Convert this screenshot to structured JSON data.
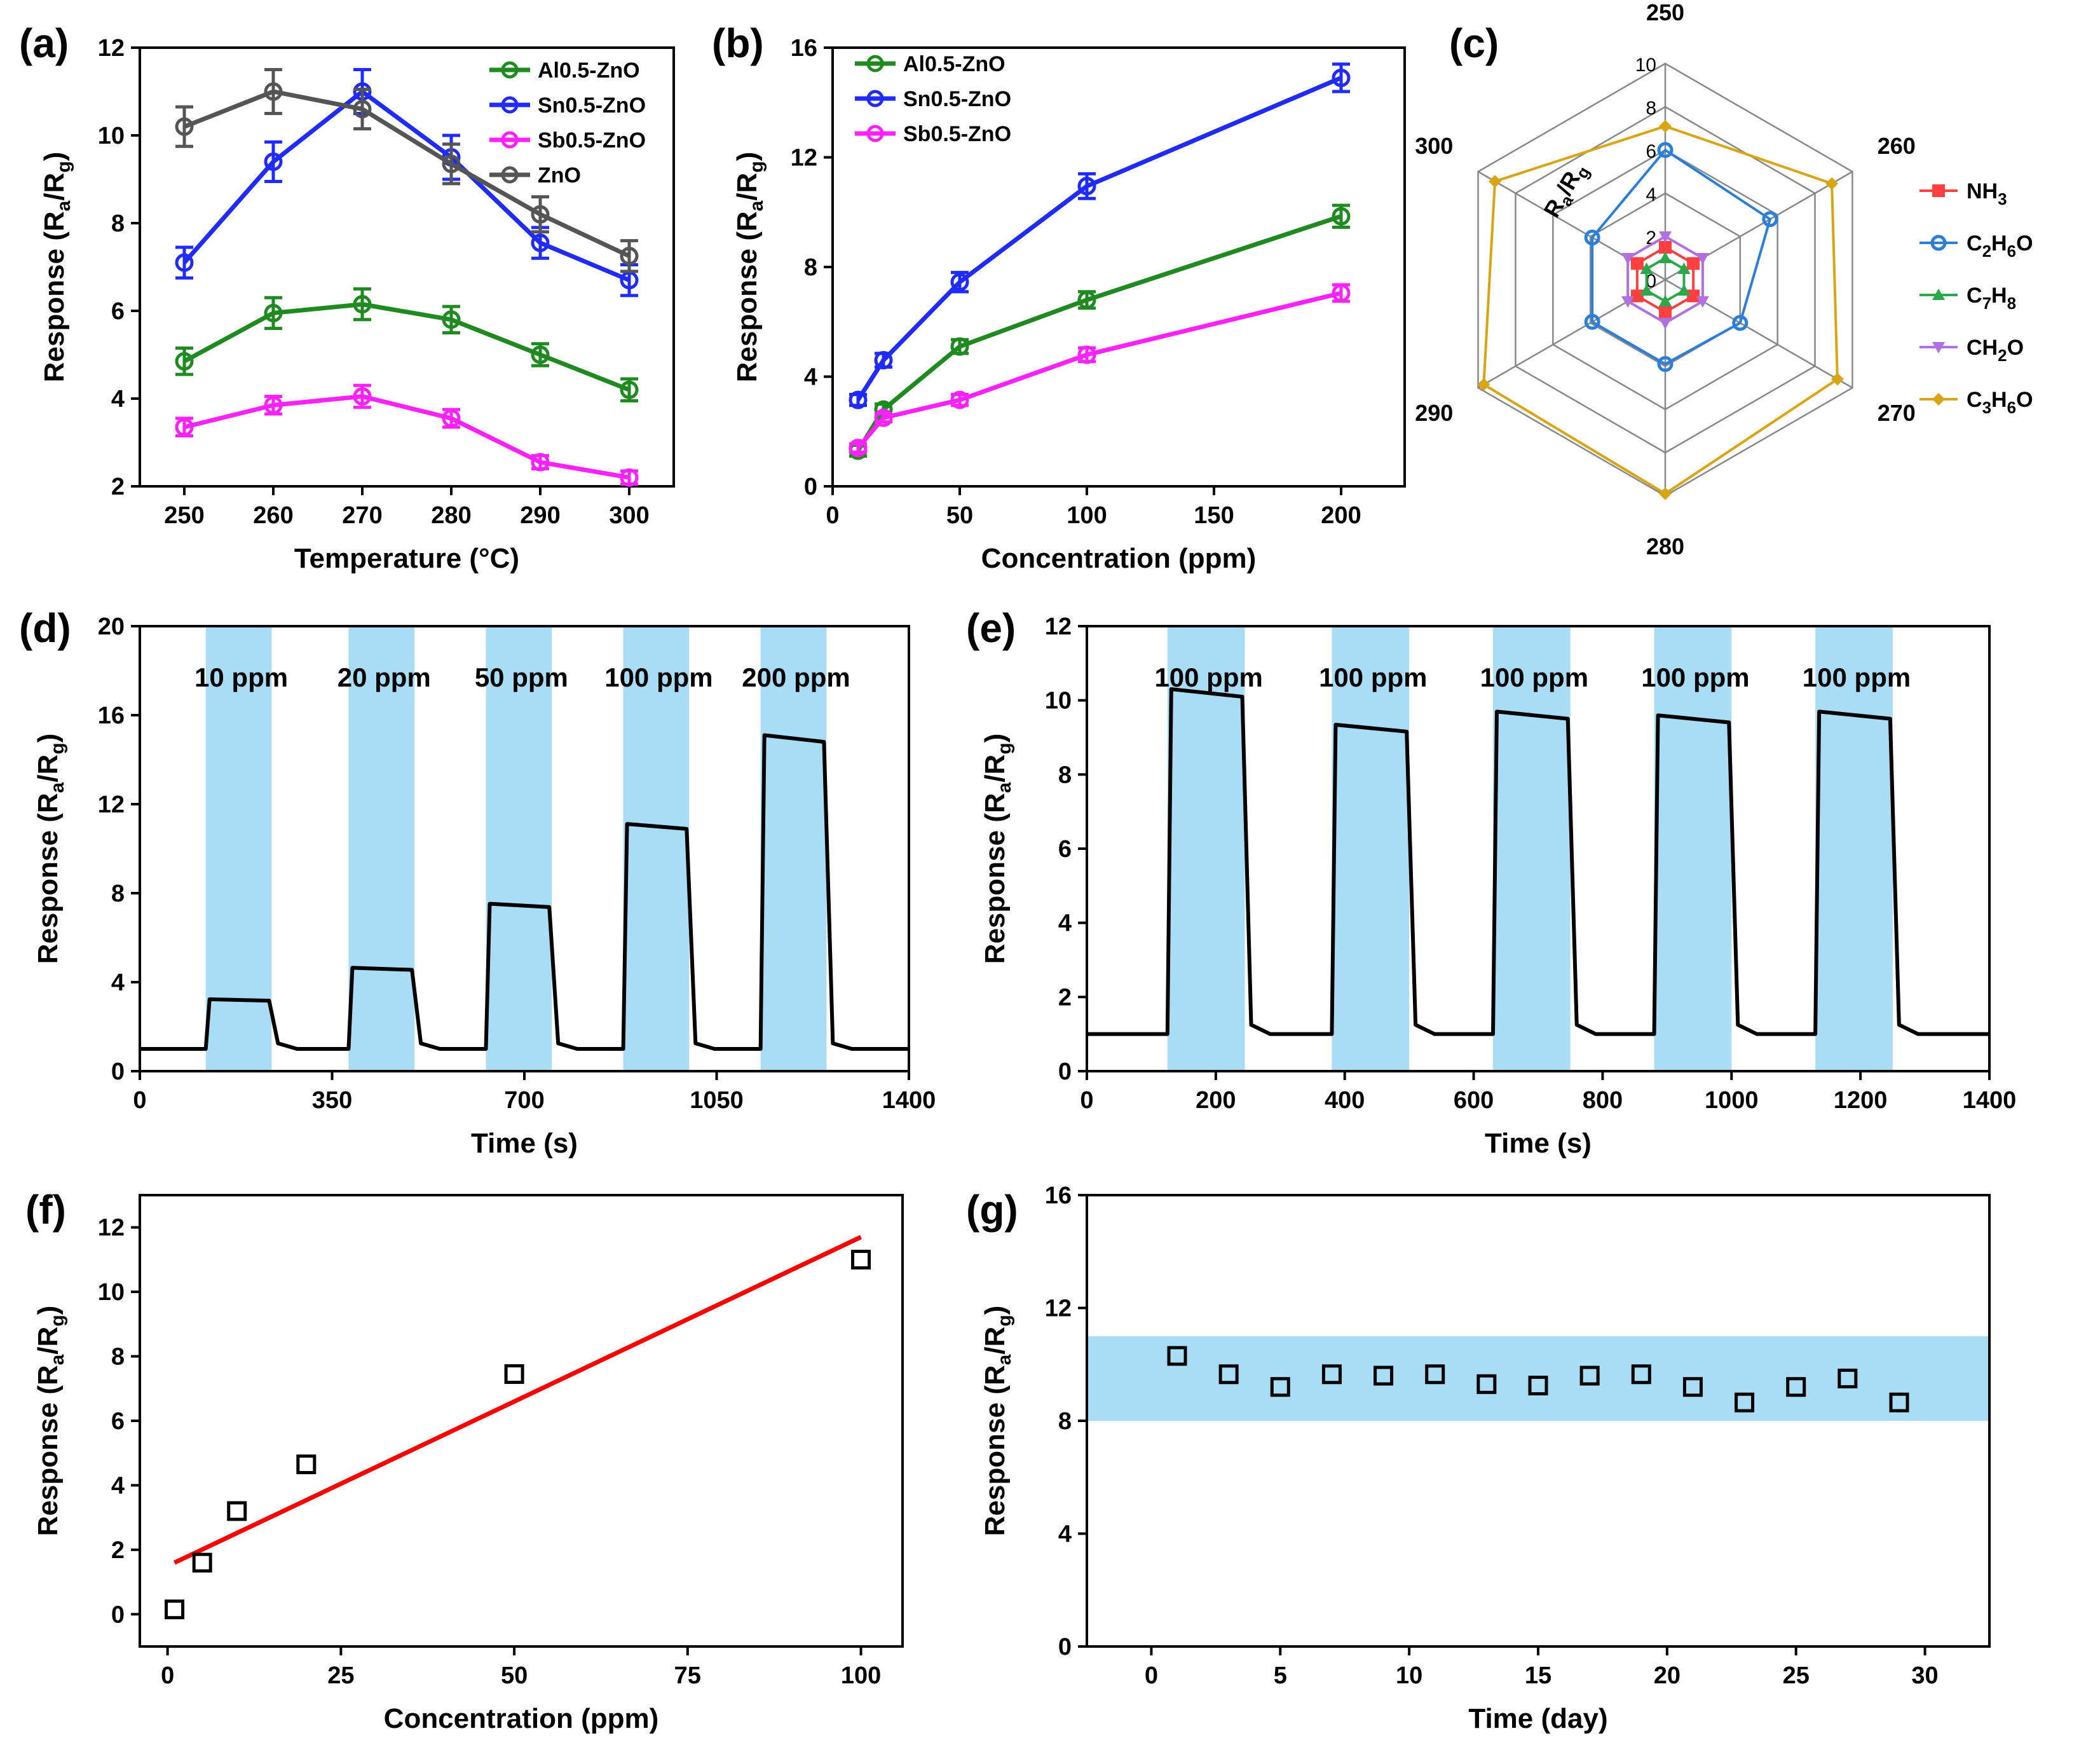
{
  "chart_data": [
    {
      "id": "a",
      "panel_label": "(a)",
      "type": "line",
      "xlabel": "Temperature (°C)",
      "ylabel": "Response (Ra/Rg)",
      "ylabel_parts": [
        "Response (R",
        "a",
        "/R",
        "g",
        ")"
      ],
      "x": [
        250,
        260,
        270,
        280,
        290,
        300
      ],
      "xlim": [
        245,
        305
      ],
      "xticks": [
        250,
        260,
        270,
        280,
        290,
        300
      ],
      "ylim": [
        2,
        12
      ],
      "yticks": [
        2,
        4,
        6,
        8,
        10,
        12
      ],
      "legend_position": "top-right",
      "series": [
        {
          "name": "Al0.5-ZnO",
          "color": "#1f8a1f",
          "values": [
            4.85,
            5.95,
            6.15,
            5.8,
            5.0,
            4.2
          ],
          "errors": [
            0.3,
            0.35,
            0.35,
            0.3,
            0.25,
            0.25
          ]
        },
        {
          "name": "Sn0.5-ZnO",
          "color": "#1f2bff",
          "values": [
            7.1,
            9.4,
            11.0,
            9.5,
            7.55,
            6.7
          ],
          "errors": [
            0.35,
            0.45,
            0.5,
            0.5,
            0.35,
            0.35
          ]
        },
        {
          "name": "Sb0.5-ZnO",
          "color": "#ff22ff",
          "values": [
            3.35,
            3.85,
            4.05,
            3.55,
            2.55,
            2.2
          ],
          "errors": [
            0.2,
            0.2,
            0.25,
            0.2,
            0.15,
            0.15
          ]
        },
        {
          "name": "ZnO",
          "color": "#555555",
          "values": [
            10.2,
            11.0,
            10.6,
            9.35,
            8.2,
            7.25
          ],
          "errors": [
            0.45,
            0.5,
            0.45,
            0.45,
            0.4,
            0.35
          ]
        }
      ]
    },
    {
      "id": "b",
      "panel_label": "(b)",
      "type": "line",
      "xlabel": "Concentration (ppm)",
      "ylabel": "Response (Ra/Rg)",
      "ylabel_parts": [
        "Response (R",
        "a",
        "/R",
        "g",
        ")"
      ],
      "x": [
        10,
        20,
        50,
        100,
        200
      ],
      "xlim": [
        0,
        225
      ],
      "xticks": [
        0,
        50,
        100,
        150,
        200
      ],
      "ylim": [
        0,
        16
      ],
      "yticks": [
        0,
        4,
        8,
        12,
        16
      ],
      "legend_position": "top-left",
      "series": [
        {
          "name": "Al0.5-ZnO",
          "color": "#1f8a1f",
          "values": [
            1.3,
            2.8,
            5.1,
            6.8,
            9.85
          ],
          "errors": [
            0.2,
            0.2,
            0.25,
            0.3,
            0.4
          ]
        },
        {
          "name": "Sn0.5-ZnO",
          "color": "#1f2bff",
          "values": [
            3.15,
            4.6,
            7.45,
            10.95,
            14.9
          ],
          "errors": [
            0.2,
            0.25,
            0.35,
            0.45,
            0.5
          ]
        },
        {
          "name": "Sb0.5-ZnO",
          "color": "#ff22ff",
          "values": [
            1.4,
            2.5,
            3.15,
            4.8,
            7.05
          ],
          "errors": [
            0.15,
            0.15,
            0.2,
            0.25,
            0.3
          ]
        }
      ]
    },
    {
      "id": "c",
      "panel_label": "(c)",
      "type": "radar",
      "ylabel": "Ra/Rg",
      "axes": [
        "250",
        "260",
        "270",
        "280",
        "290",
        "300"
      ],
      "rlim": [
        0,
        10
      ],
      "rticks": [
        0,
        2,
        4,
        6,
        8,
        10
      ],
      "legend_position": "right",
      "series": [
        {
          "name": "NH3",
          "label_main": "NH",
          "label_sub": "3",
          "label_rest": "",
          "color": "#ff4040",
          "marker": "square",
          "values": [
            1.5,
            1.5,
            1.5,
            1.5,
            1.5,
            1.5
          ]
        },
        {
          "name": "C2H6O",
          "label_main": "C",
          "label_sub": "2",
          "label_rest": "H",
          "label_sub2": "6",
          "label_end": "O",
          "color": "#2b7fd8",
          "marker": "circle",
          "values": [
            6.0,
            5.6,
            4.0,
            3.9,
            3.9,
            3.9
          ]
        },
        {
          "name": "C7H8",
          "label_main": "C",
          "label_sub": "7",
          "label_rest": "H",
          "label_sub2": "8",
          "label_end": "",
          "color": "#2aa84a",
          "marker": "triangle",
          "values": [
            1.0,
            1.0,
            1.0,
            1.0,
            1.0,
            1.0
          ]
        },
        {
          "name": "CH2O",
          "label_main": "CH",
          "label_sub": "2",
          "label_rest": "O",
          "color": "#b070e0",
          "marker": "triangle-down",
          "values": [
            2.0,
            2.0,
            2.0,
            2.0,
            2.0,
            2.0
          ]
        },
        {
          "name": "C3H6O",
          "label_main": "C",
          "label_sub": "3",
          "label_rest": "H",
          "label_sub2": "6",
          "label_end": "O",
          "color": "#d9a514",
          "marker": "diamond",
          "values": [
            7.1,
            8.9,
            9.2,
            9.9,
            9.7,
            9.1
          ]
        }
      ]
    },
    {
      "id": "d",
      "panel_label": "(d)",
      "type": "line",
      "xlabel": "Time (s)",
      "ylabel": "Response (Ra/Rg)",
      "ylabel_parts": [
        "Response (R",
        "a",
        "/R",
        "g",
        ")"
      ],
      "xlim": [
        0,
        1400
      ],
      "xticks": [
        0,
        350,
        700,
        1050,
        1400
      ],
      "ylim": [
        0,
        20
      ],
      "yticks": [
        0,
        4,
        8,
        12,
        16,
        20
      ],
      "baseline": 1.0,
      "pulses": [
        {
          "label": "10 ppm",
          "start": 120,
          "end": 240,
          "value": 3.2
        },
        {
          "label": "20 ppm",
          "start": 380,
          "end": 500,
          "value": 4.6
        },
        {
          "label": "50 ppm",
          "start": 630,
          "end": 750,
          "value": 7.45
        },
        {
          "label": "100 ppm",
          "start": 880,
          "end": 1000,
          "value": 11.0
        },
        {
          "label": "200 ppm",
          "start": 1130,
          "end": 1250,
          "value": 14.95
        }
      ]
    },
    {
      "id": "e",
      "panel_label": "(e)",
      "type": "line",
      "xlabel": "Time (s)",
      "ylabel": "Response (Ra/Rg)",
      "ylabel_parts": [
        "Response (R",
        "a",
        "/R",
        "g",
        ")"
      ],
      "xlim": [
        0,
        1400
      ],
      "xticks": [
        0,
        200,
        400,
        600,
        800,
        1000,
        1200,
        1400
      ],
      "ylim": [
        0,
        12
      ],
      "yticks": [
        0,
        2,
        4,
        6,
        8,
        10,
        12
      ],
      "baseline": 1.0,
      "pulses": [
        {
          "label": "100 ppm",
          "start": 125,
          "end": 245,
          "value": 10.2
        },
        {
          "label": "100 ppm",
          "start": 380,
          "end": 500,
          "value": 9.25
        },
        {
          "label": "100 ppm",
          "start": 630,
          "end": 750,
          "value": 9.6
        },
        {
          "label": "100 ppm",
          "start": 880,
          "end": 1000,
          "value": 9.5
        },
        {
          "label": "100 ppm",
          "start": 1130,
          "end": 1250,
          "value": 9.6
        }
      ]
    },
    {
      "id": "f",
      "panel_label": "(f)",
      "type": "scatter",
      "xlabel": "Concentration (ppm)",
      "ylabel": "Response (Ra/Rg)",
      "ylabel_parts": [
        "Response (R",
        "a",
        "/R",
        "g",
        ")"
      ],
      "xlim": [
        -4,
        106
      ],
      "xticks": [
        0,
        25,
        50,
        75,
        100
      ],
      "ylim": [
        -1,
        13
      ],
      "yticks": [
        0,
        2,
        4,
        6,
        8,
        10,
        12
      ],
      "x": [
        1,
        5,
        10,
        20,
        50,
        100
      ],
      "y": [
        0.15,
        1.6,
        3.2,
        4.65,
        7.45,
        11.0
      ],
      "fit": {
        "color": "#ff0000",
        "x": [
          1,
          100
        ],
        "y": [
          1.6,
          11.7
        ]
      }
    },
    {
      "id": "g",
      "panel_label": "(g)",
      "type": "scatter",
      "xlabel": "Time (day)",
      "ylabel": "Response (Ra/Rg)",
      "ylabel_parts": [
        "Response (R",
        "a",
        "/R",
        "g",
        ")"
      ],
      "xlim": [
        -2.5,
        32.5
      ],
      "xticks": [
        0,
        5,
        10,
        15,
        20,
        25,
        30
      ],
      "ylim": [
        0,
        16
      ],
      "yticks": [
        0,
        4,
        8,
        12,
        16
      ],
      "band": [
        8.0,
        11.0
      ],
      "x": [
        1,
        3,
        5,
        7,
        9,
        11,
        13,
        15,
        17,
        19,
        21,
        23,
        25,
        27,
        29
      ],
      "y": [
        10.3,
        9.65,
        9.2,
        9.65,
        9.6,
        9.65,
        9.3,
        9.25,
        9.6,
        9.65,
        9.2,
        8.65,
        9.2,
        9.5,
        8.65
      ]
    }
  ]
}
